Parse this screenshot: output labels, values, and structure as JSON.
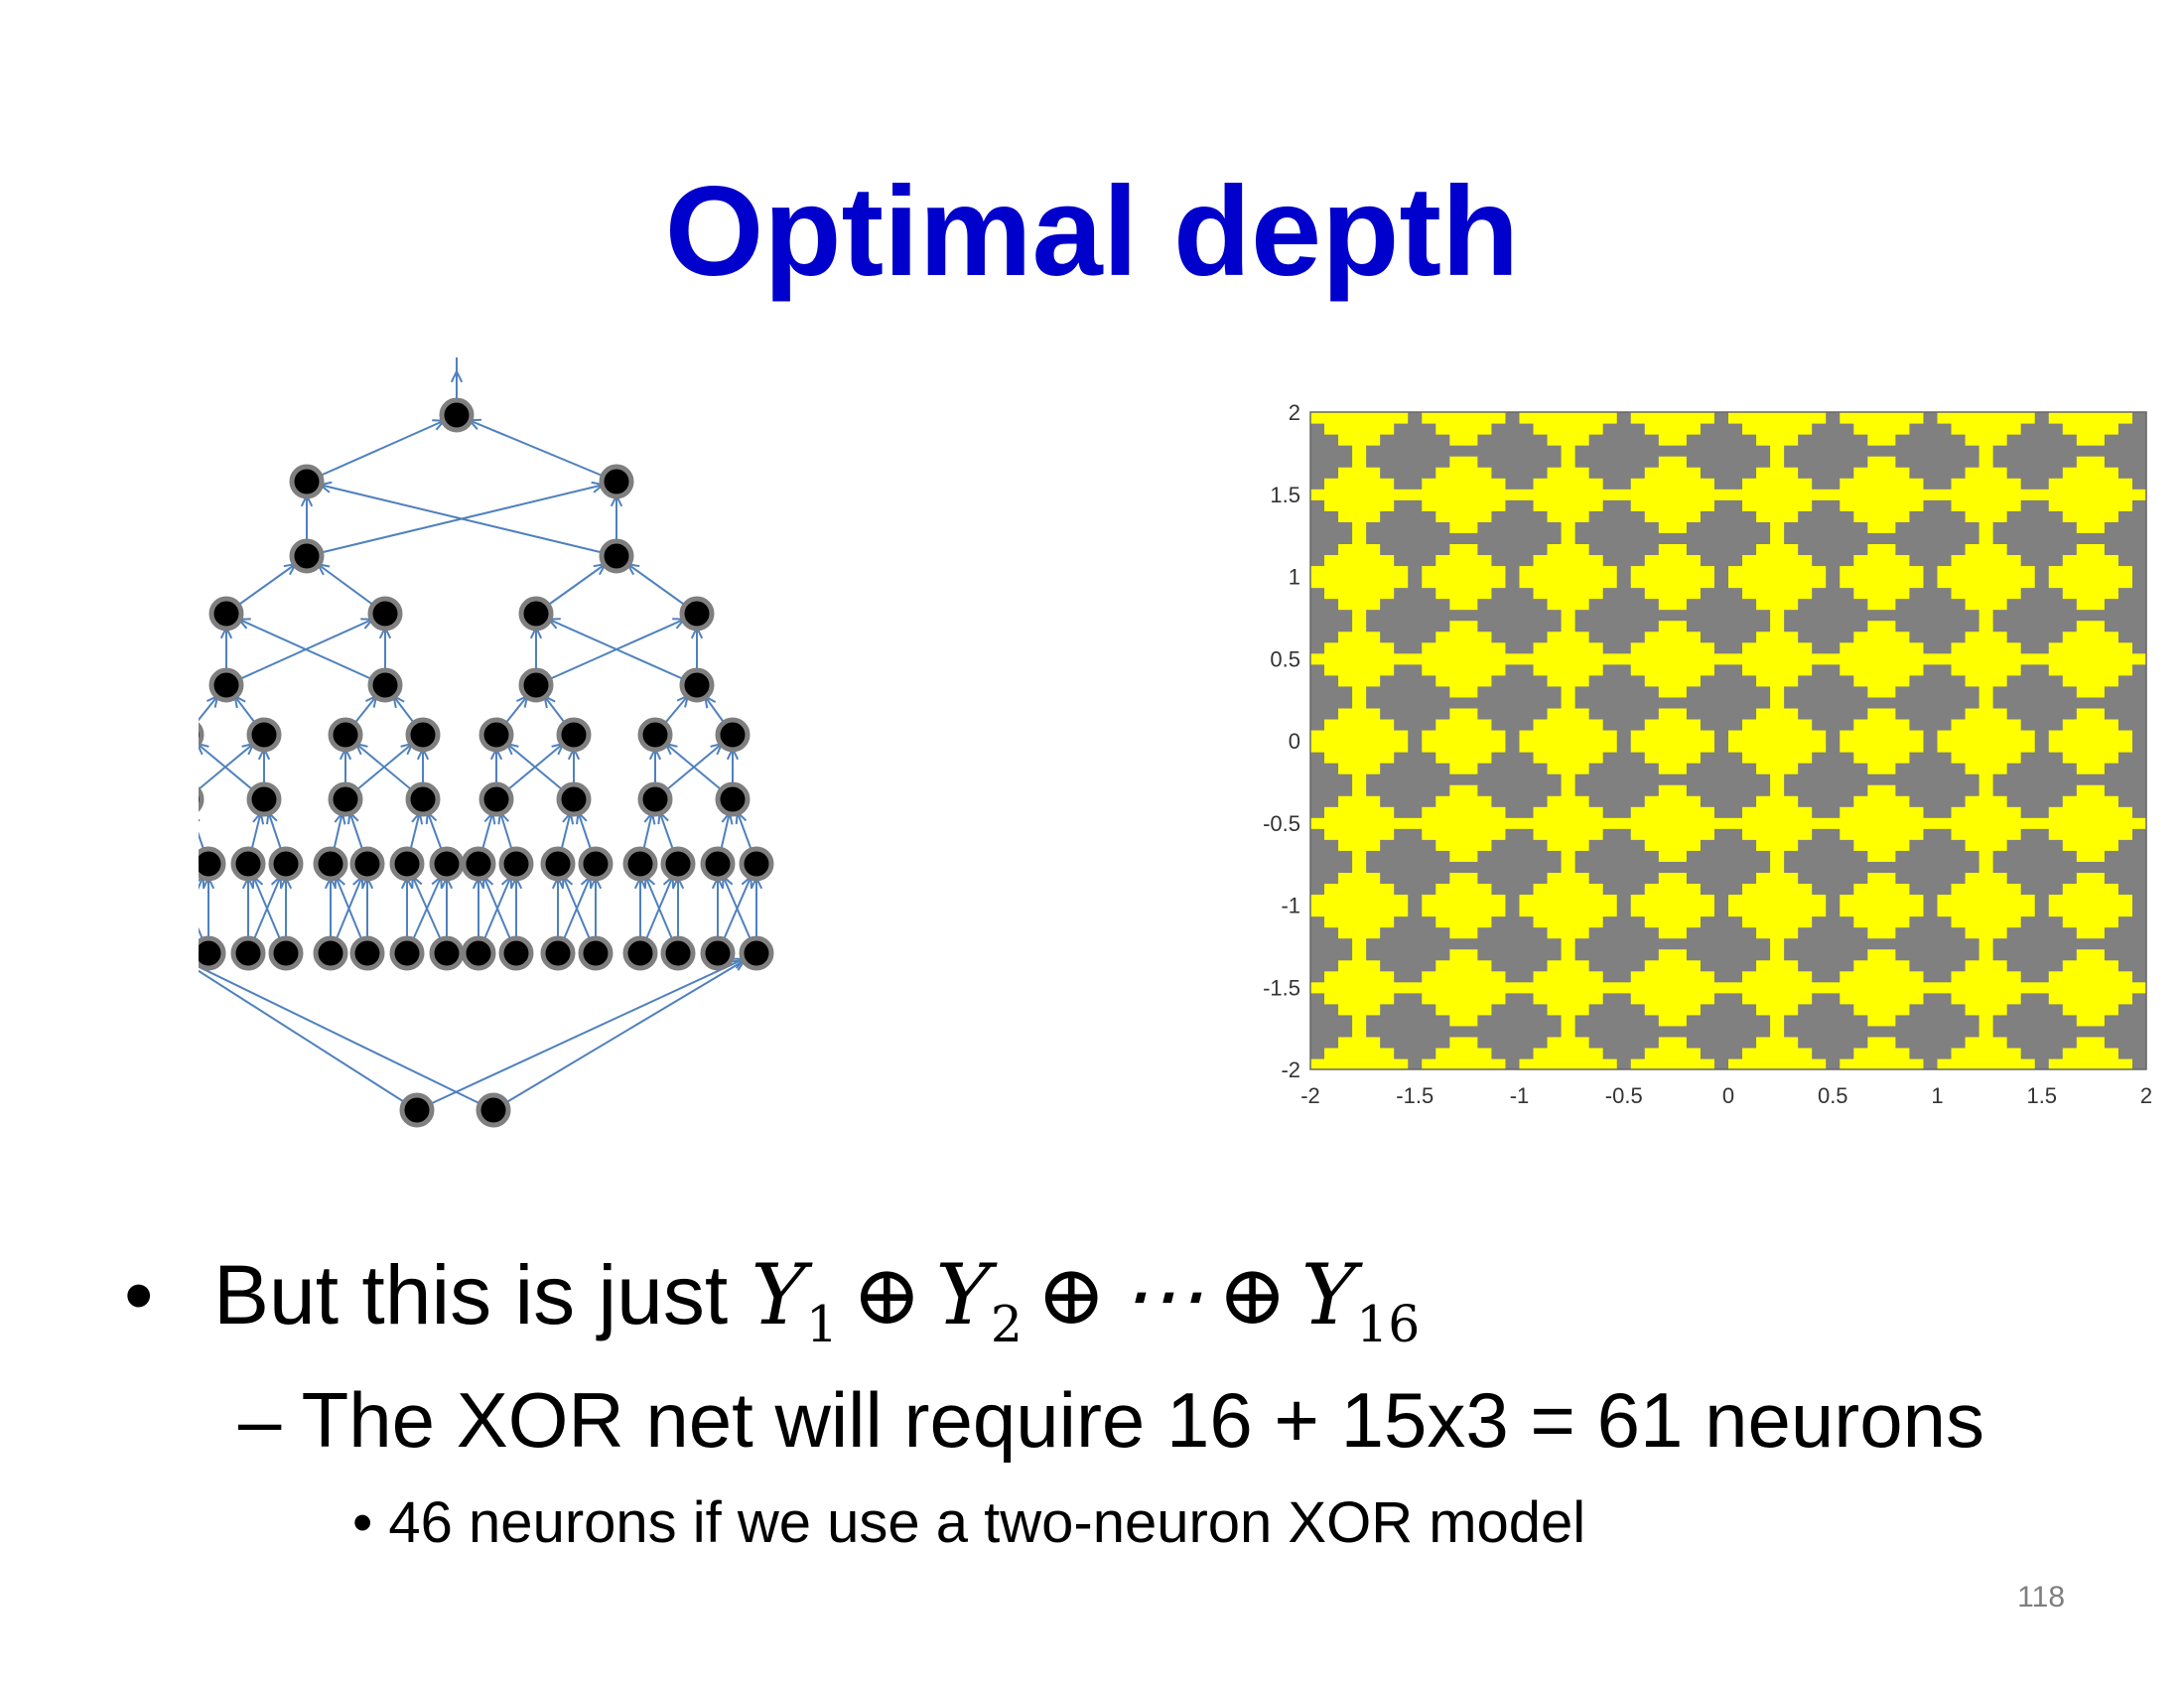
{
  "slide": {
    "title": "Optimal depth",
    "page_number": "118"
  },
  "bullets": {
    "main_prefix": "But this is just",
    "main_math": {
      "terms": [
        "Y",
        "Y",
        "Y"
      ],
      "subscripts": [
        "1",
        "2",
        "16"
      ],
      "operator": "⊕",
      "ellipsis": "⋯"
    },
    "sub": "– The XOR net will require 16 + 15x3 = 61 neurons",
    "subsub": "46 neurons if we use a two-neuron XOR model"
  },
  "colors": {
    "title": "#0000cc",
    "edge": "#4f81bd",
    "node_fill": "#000000",
    "node_ring": "#7f7f7f",
    "plot_yellow": "#ffff00",
    "plot_gray": "#808080"
  },
  "chart_data": {
    "type": "heatmap",
    "title": "",
    "xlabel": "",
    "ylabel": "",
    "xlim": [
      -2,
      2
    ],
    "ylim": [
      -2,
      2
    ],
    "xticks": [
      "-2",
      "-1.5",
      "-1",
      "-0.5",
      "0",
      "0.5",
      "1",
      "1.5",
      "2"
    ],
    "yticks": [
      "2",
      "1.5",
      "1",
      "0.5",
      "0",
      "-0.5",
      "-1",
      "-1.5",
      "-2"
    ],
    "stripe_spacing": 0.5,
    "description_regions": "parity of diagonal stripe bands (x+y and x-y), yellow vs gray"
  }
}
